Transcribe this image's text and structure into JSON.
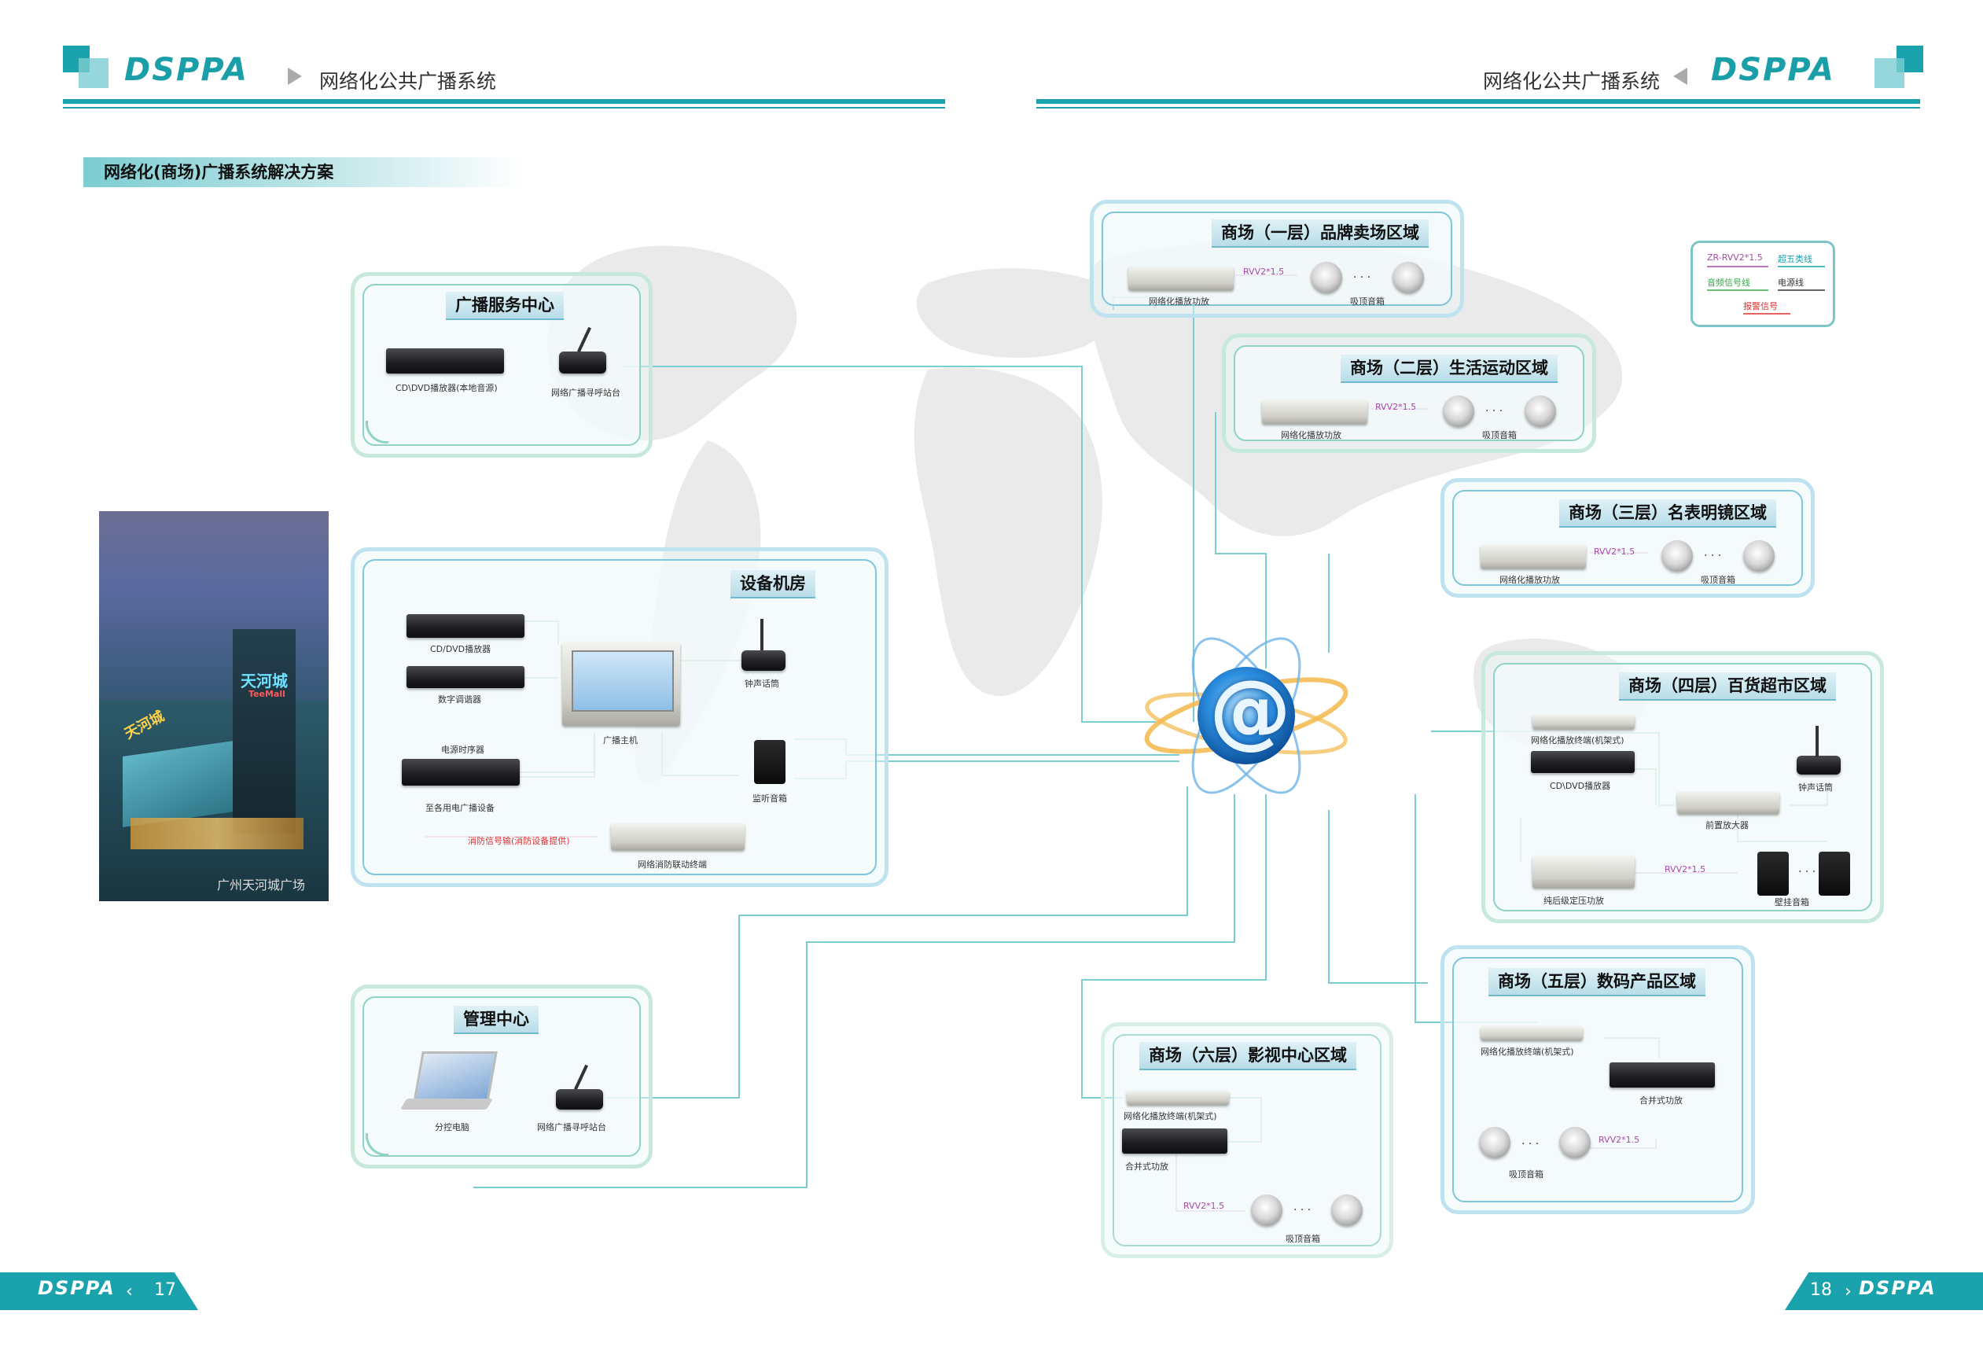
{
  "header": {
    "left_brand": "DSPPA",
    "left_title": "网络化公共广播系统",
    "right_title": "网络化公共广播系统",
    "right_brand": "DSPPA"
  },
  "solution_title": "网络化(商场)广播系统解决方案",
  "photo_caption": "广州天河城广场",
  "photo_sign": "天河城",
  "photo_sign_en": "TeeMall",
  "photo_sign_side": "天河城",
  "legend": {
    "items": [
      "ZR-RVV2*1.5",
      "超五类线",
      "音频信号线",
      "电源线",
      "报警信号"
    ],
    "colors": {
      "rvv": "#a64aa6",
      "cat5": "#1aa3ac",
      "audio": "#3aa84a",
      "power": "#333333",
      "alarm": "#e03030"
    }
  },
  "panels": {
    "broadcast_center": {
      "title": "广播服务中心",
      "dev1": "CD\\DVD播放器(本地音源)",
      "dev2": "网络广播寻呼站台"
    },
    "equipment_room": {
      "title": "设备机房",
      "cd": "CD/DVD播放器",
      "tuner": "数字调谐器",
      "host": "广播主机",
      "mic": "钟声话筒",
      "sequencer": "电源时序器",
      "to_devices": "至各用电广播设备",
      "monitor": "监听音箱",
      "fire_signal": "消防信号输(消防设备提供)",
      "fire_terminal": "网络消防联动终端"
    },
    "mgmt_center": {
      "title": "管理中心",
      "pc": "分控电脑",
      "paging": "网络广播寻呼站台"
    },
    "floor1": {
      "title": "商场（一层）品牌卖场区域",
      "amp": "网络化播放功放",
      "cable": "RVV2*1.5",
      "dots": "· · ·",
      "spk": "吸顶音箱"
    },
    "floor2": {
      "title": "商场（二层）生活运动区域",
      "amp": "网络化播放功放",
      "cable": "RVV2*1.5",
      "dots": "· · ·",
      "spk": "吸顶音箱"
    },
    "floor3": {
      "title": "商场（三层）名表明镜区域",
      "amp": "网络化播放功放",
      "cable": "RVV2*1.5",
      "dots": "· · ·",
      "spk": "吸顶音箱"
    },
    "floor4": {
      "title": "商场（四层）百货超市区域",
      "terminal": "网络化播放终端(机架式)",
      "cd": "CD\\DVD播放器",
      "mic": "钟声话筒",
      "preamp": "前置放大器",
      "power_amp": "纯后级定压功放",
      "cable": "RVV2*1.5",
      "dots": "· · ·",
      "spk": "壁挂音箱"
    },
    "floor5": {
      "title": "商场（五层）数码产品区域",
      "terminal": "网络化播放终端(机架式)",
      "amp": "合并式功放",
      "cable": "RVV2*1.5",
      "dots": "· · ·",
      "spk": "吸顶音箱"
    },
    "floor6": {
      "title": "商场（六层）影视中心区域",
      "terminal": "网络化播放终端(机架式)",
      "amp": "合并式功放",
      "cable": "RVV2*1.5",
      "dots": "· · ·",
      "spk": "吸顶音箱"
    }
  },
  "center_symbol": "@",
  "footer": {
    "left_brand": "DSPPA",
    "left_page": "17",
    "right_page": "18",
    "right_brand": "DSPPA"
  }
}
